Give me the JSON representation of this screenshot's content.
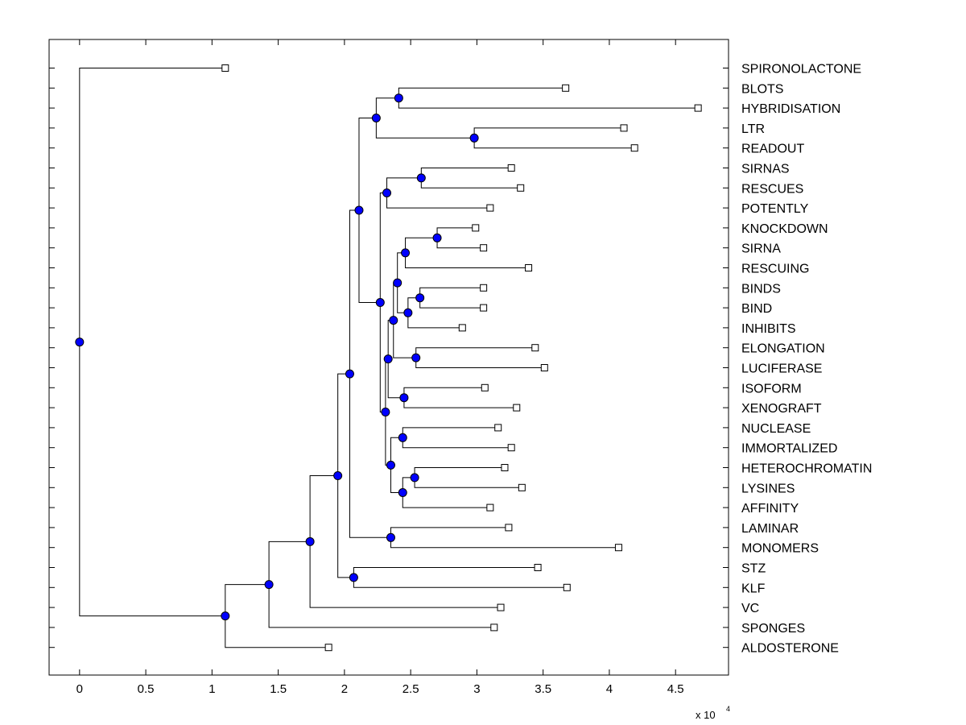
{
  "chart_data": {
    "type": "dendrogram",
    "title": "",
    "xlabel": "",
    "ylabel": "",
    "x_exponent_label": "x 10",
    "x_exponent_power": "4",
    "xlim": [
      -0.23,
      4.9
    ],
    "x_ticks": [
      0,
      0.5,
      1,
      1.5,
      2,
      2.5,
      3,
      3.5,
      4,
      4.5
    ],
    "x_tick_labels": [
      "0",
      "0.5",
      "1",
      "1.5",
      "2",
      "2.5",
      "3",
      "3.5",
      "4",
      "4.5"
    ],
    "colors": {
      "node": "#0000ff",
      "line": "#000000",
      "leaf_fill": "#ffffff"
    },
    "leaves": [
      {
        "label": "SPIRONOLACTONE",
        "value": 1.1
      },
      {
        "label": "BLOTS",
        "value": 3.67
      },
      {
        "label": "HYBRIDISATION",
        "value": 4.67
      },
      {
        "label": "LTR",
        "value": 4.11
      },
      {
        "label": "READOUT",
        "value": 4.19
      },
      {
        "label": "SIRNAS",
        "value": 3.26
      },
      {
        "label": "RESCUES",
        "value": 3.33
      },
      {
        "label": "POTENTLY",
        "value": 3.1
      },
      {
        "label": "KNOCKDOWN",
        "value": 2.99
      },
      {
        "label": "SIRNA",
        "value": 3.05
      },
      {
        "label": "RESCUING",
        "value": 3.39
      },
      {
        "label": "BINDS",
        "value": 3.05
      },
      {
        "label": "BIND",
        "value": 3.05
      },
      {
        "label": "INHIBITS",
        "value": 2.89
      },
      {
        "label": "ELONGATION",
        "value": 3.44
      },
      {
        "label": "LUCIFERASE",
        "value": 3.51
      },
      {
        "label": "ISOFORM",
        "value": 3.06
      },
      {
        "label": "XENOGRAFT",
        "value": 3.3
      },
      {
        "label": "NUCLEASE",
        "value": 3.16
      },
      {
        "label": "IMMORTALIZED",
        "value": 3.26
      },
      {
        "label": "HETEROCHROMATIN",
        "value": 3.21
      },
      {
        "label": "LYSINES",
        "value": 3.34
      },
      {
        "label": "AFFINITY",
        "value": 3.1
      },
      {
        "label": "LAMINAR",
        "value": 3.24
      },
      {
        "label": "MONOMERS",
        "value": 4.07
      },
      {
        "label": "STZ",
        "value": 3.46
      },
      {
        "label": "KLF",
        "value": 3.68
      },
      {
        "label": "VC",
        "value": 3.18
      },
      {
        "label": "SPONGES",
        "value": 3.13
      },
      {
        "label": "ALDOSTERONE",
        "value": 1.88
      }
    ],
    "nodes": [
      {
        "id": "n1",
        "value": 2.41,
        "children": [
          "L1",
          "L2"
        ]
      },
      {
        "id": "n2",
        "value": 2.98,
        "children": [
          "L3",
          "L4"
        ]
      },
      {
        "id": "n3",
        "value": 2.24,
        "children": [
          "n1",
          "n2"
        ]
      },
      {
        "id": "n4",
        "value": 2.58,
        "children": [
          "L5",
          "L6"
        ]
      },
      {
        "id": "n5",
        "value": 2.32,
        "children": [
          "n4",
          "L7"
        ]
      },
      {
        "id": "n6",
        "value": 2.7,
        "children": [
          "L8",
          "L9"
        ]
      },
      {
        "id": "n7",
        "value": 2.46,
        "children": [
          "n6",
          "L10"
        ]
      },
      {
        "id": "n8",
        "value": 2.57,
        "children": [
          "L11",
          "L12"
        ]
      },
      {
        "id": "n9",
        "value": 2.48,
        "children": [
          "n8",
          "L13"
        ]
      },
      {
        "id": "n10",
        "value": 2.4,
        "children": [
          "n7",
          "n9"
        ]
      },
      {
        "id": "n11",
        "value": 2.54,
        "children": [
          "L14",
          "L15"
        ]
      },
      {
        "id": "n12",
        "value": 2.37,
        "children": [
          "n10",
          "n11"
        ]
      },
      {
        "id": "n13",
        "value": 2.45,
        "children": [
          "L16",
          "L17"
        ]
      },
      {
        "id": "n14",
        "value": 2.33,
        "children": [
          "n12",
          "n13"
        ]
      },
      {
        "id": "n15",
        "value": 2.44,
        "children": [
          "L18",
          "L19"
        ]
      },
      {
        "id": "n16",
        "value": 2.53,
        "children": [
          "L20",
          "L21"
        ]
      },
      {
        "id": "n17",
        "value": 2.44,
        "children": [
          "n16",
          "L22"
        ]
      },
      {
        "id": "n18",
        "value": 2.35,
        "children": [
          "n15",
          "n17"
        ]
      },
      {
        "id": "n19",
        "value": 2.31,
        "children": [
          "n14",
          "n18"
        ]
      },
      {
        "id": "n20",
        "value": 2.27,
        "children": [
          "n5",
          "n19"
        ]
      },
      {
        "id": "n21",
        "value": 2.11,
        "children": [
          "n3",
          "n20"
        ]
      },
      {
        "id": "n22",
        "value": 2.35,
        "children": [
          "L23",
          "L24"
        ]
      },
      {
        "id": "n23",
        "value": 2.04,
        "children": [
          "n21",
          "n22"
        ]
      },
      {
        "id": "n24",
        "value": 2.07,
        "children": [
          "L25",
          "L26"
        ]
      },
      {
        "id": "n25",
        "value": 1.95,
        "children": [
          "n23",
          "n24"
        ]
      },
      {
        "id": "n26",
        "value": 1.74,
        "children": [
          "n25",
          "L27"
        ]
      },
      {
        "id": "n27",
        "value": 1.43,
        "children": [
          "n26",
          "L28"
        ]
      },
      {
        "id": "n28",
        "value": 1.1,
        "children": [
          "n27",
          "L29"
        ]
      },
      {
        "id": "n29",
        "value": 0.0,
        "children": [
          "L0",
          "n28"
        ]
      }
    ]
  }
}
